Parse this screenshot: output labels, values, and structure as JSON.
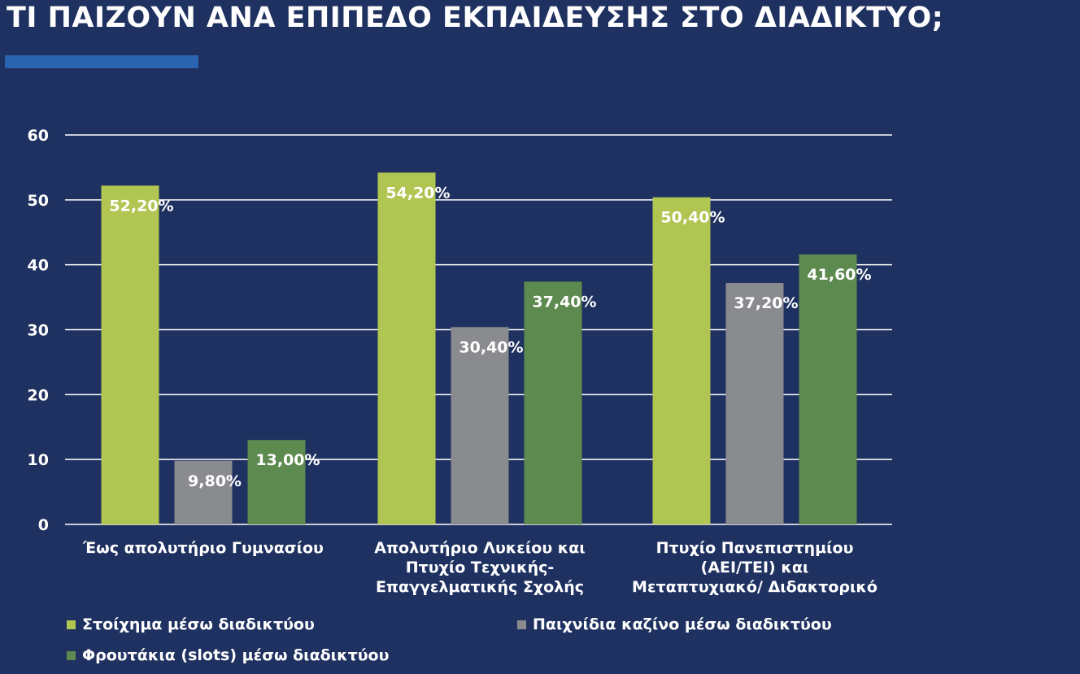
{
  "page": {
    "title": "ΤΙ ΠΑΙΖΟΥΝ ΑΝΑ ΕΠΙΠΕΔΟ ΕΚΠΑΙΔΕΥΣΗΣ ΣΤΟ ΔΙΑΔΙΚΤΥΟ;"
  },
  "colors": {
    "background": "#1f3160",
    "accent_bar": "#2a63b0",
    "grid": "#ffffff"
  },
  "chart_data": {
    "type": "bar",
    "title": "",
    "xlabel": "",
    "ylabel": "",
    "ylim": [
      0,
      60
    ],
    "yticks": [
      "0",
      "10",
      "20",
      "30",
      "40",
      "50",
      "60"
    ],
    "grid": true,
    "legend_position": "bottom",
    "categories": [
      "Έως απολυτήριο Γυμνασίου",
      "Απολυτήριο Λυκείου και Πτυχίο Τεχνικής-Επαγγελματικής Σχολής",
      "Πτυχίο Πανεπιστημίου (ΑΕΙ/ΤΕΙ) και Μεταπτυχιακό/ Διδακτορικό"
    ],
    "category_lines": [
      [
        "Έως απολυτήριο Γυμνασίου"
      ],
      [
        "Απολυτήριο Λυκείου και",
        "Πτυχίο Τεχνικής-",
        "Επαγγελματικής Σχολής"
      ],
      [
        "Πτυχίο Πανεπιστημίου",
        "(ΑΕΙ/ΤΕΙ) και",
        "Μεταπτυχιακό/ Διδακτορικό"
      ]
    ],
    "series": [
      {
        "name": "Στοίχημα μέσω διαδικτύου",
        "color": "#b0c552",
        "values": [
          52.2,
          54.2,
          50.4
        ],
        "labels": [
          "52,20%",
          "54,20%",
          "50,40%"
        ]
      },
      {
        "name": "Παιχνίδια καζίνο μέσω διαδικτύου",
        "color": "#8a8b8f",
        "values": [
          9.8,
          30.4,
          37.2
        ],
        "labels": [
          "9,80%",
          "30,40%",
          "37,20%"
        ]
      },
      {
        "name": "Φρουτάκια (slots) μέσω διαδικτύου",
        "color": "#5d8a4e",
        "values": [
          13.0,
          37.4,
          41.6
        ],
        "labels": [
          "13,00%",
          "37,40%",
          "41,60%"
        ]
      }
    ]
  }
}
